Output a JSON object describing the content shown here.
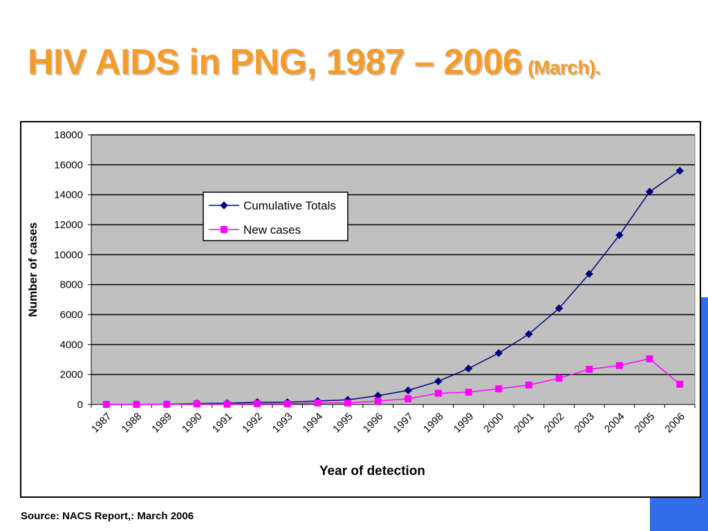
{
  "slide": {
    "title_main": "HIV AIDS in PNG, 1987 – 2006",
    "title_suffix": "(March).",
    "source": "Source: NACS Report,: March 2006"
  },
  "colors": {
    "title": "#f59b2a",
    "plot_bg": "#c0c0c0",
    "cumulative": "#000080",
    "new_cases": "#ff00ff",
    "deco_blue": "#2f6ee8"
  },
  "chart_data": {
    "type": "line",
    "categories": [
      "1987",
      "1988",
      "1989",
      "1990",
      "1991",
      "1992",
      "1993",
      "1994",
      "1995",
      "1996",
      "1997",
      "1998",
      "1999",
      "2000",
      "2001",
      "2002",
      "2003",
      "2004",
      "2005",
      "2006"
    ],
    "series": [
      {
        "name": "Cumulative Totals",
        "marker": "diamond",
        "values": [
          5,
          10,
          20,
          70,
          80,
          150,
          150,
          230,
          310,
          590,
          940,
          1550,
          2400,
          3430,
          4700,
          6420,
          8720,
          11300,
          14200,
          15600
        ]
      },
      {
        "name": "New cases",
        "marker": "square",
        "values": [
          5,
          5,
          10,
          40,
          15,
          50,
          40,
          100,
          100,
          230,
          380,
          750,
          820,
          1050,
          1300,
          1750,
          2350,
          2600,
          3050,
          1350
        ]
      }
    ],
    "title": "",
    "xlabel": "Year of detection",
    "ylabel": "Number of cases",
    "ylim": [
      0,
      18000
    ],
    "yticks": [
      0,
      2000,
      4000,
      6000,
      8000,
      10000,
      12000,
      14000,
      16000,
      18000
    ],
    "grid": true,
    "legend_position": "upper-left inside plot"
  }
}
